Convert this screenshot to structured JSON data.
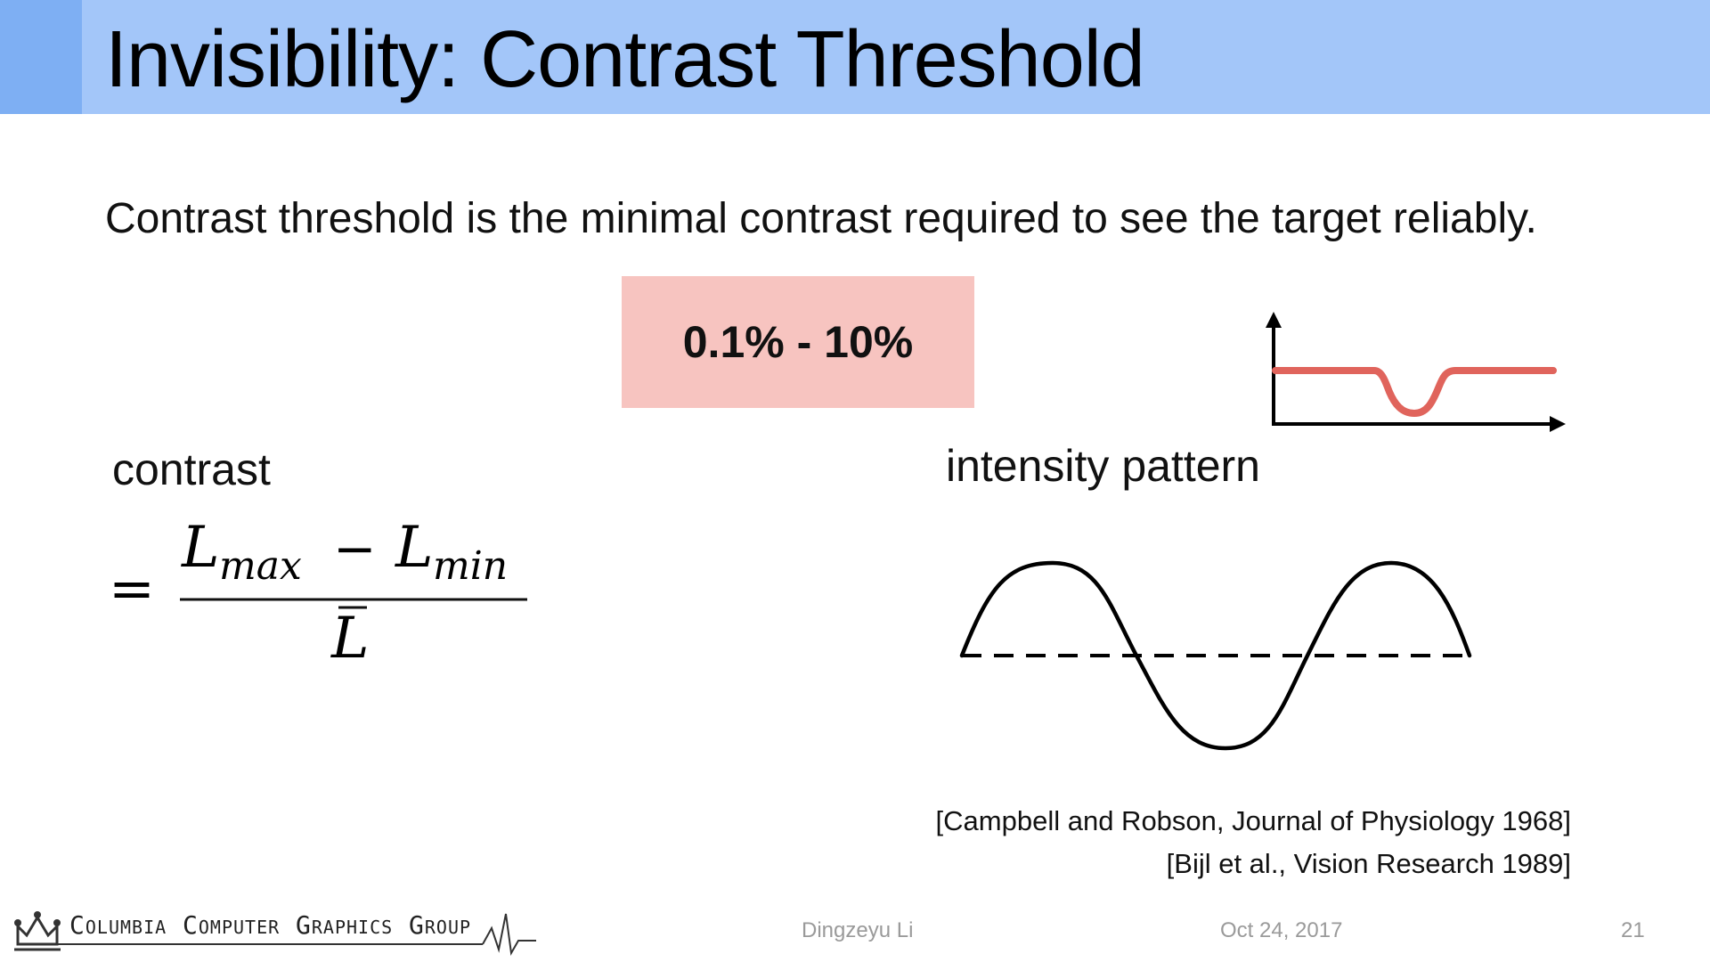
{
  "slide": {
    "title": "Invisibility: Contrast Threshold",
    "definition": "Contrast threshold is the minimal contrast required to see the target reliably.",
    "range_value": "0.1% - 10%",
    "contrast_label": "contrast",
    "intensity_label": "intensity pattern",
    "formula": {
      "equals": "=",
      "numerator_left": "L",
      "numerator_left_sub": "max",
      "minus": "−",
      "numerator_right": "L",
      "numerator_right_sub": "min",
      "denominator": "L"
    },
    "citations": [
      "[Campbell and Robson, Journal of Physiology 1968]",
      "[Bijl et al., Vision Research 1989]"
    ]
  },
  "footer": {
    "group_name": "Columbia Computer Graphics Group",
    "author": "Dingzeyu Li",
    "date": "Oct 24, 2017",
    "page_number": "21"
  },
  "colors": {
    "title_bar": "#a3c6f9",
    "title_accent": "#7eaff3",
    "range_box": "#f7c4c0",
    "profile_line": "#e0645c",
    "footer_text": "#9a9a9a"
  },
  "icons": {
    "logo": "crown-icon",
    "signal": "heartbeat-line-icon"
  }
}
